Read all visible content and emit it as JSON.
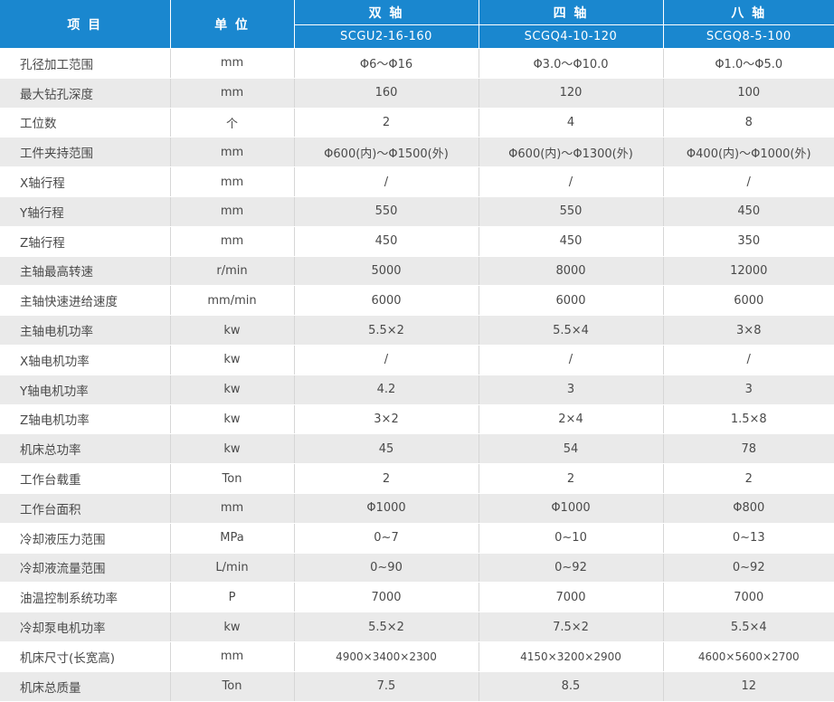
{
  "header": {
    "item_label": "项 目",
    "unit_label": "单 位",
    "models": [
      {
        "group": "双 轴",
        "code": "SCGU2-16-160"
      },
      {
        "group": "四 轴",
        "code": "SCGQ4-10-120"
      },
      {
        "group": "八 轴",
        "code": "SCGQ8-5-100"
      }
    ]
  },
  "rows": [
    {
      "item": "孔径加工范围",
      "unit": "mm",
      "v": [
        "Φ6～Φ16",
        "Φ3.0～Φ10.0",
        "Φ1.0～Φ5.0"
      ]
    },
    {
      "item": "最大钻孔深度",
      "unit": "mm",
      "v": [
        "160",
        "120",
        "100"
      ]
    },
    {
      "item": "工位数",
      "unit": "个",
      "v": [
        "2",
        "4",
        "8"
      ]
    },
    {
      "item": "工件夹持范围",
      "unit": "mm",
      "v": [
        "Φ600(内)～Φ1500(外)",
        "Φ600(内)～Φ1300(外)",
        "Φ400(内)～Φ1000(外)"
      ]
    },
    {
      "item": "X轴行程",
      "unit": "mm",
      "v": [
        "/",
        "/",
        "/"
      ]
    },
    {
      "item": "Y轴行程",
      "unit": "mm",
      "v": [
        "550",
        "550",
        "450"
      ]
    },
    {
      "item": "Z轴行程",
      "unit": "mm",
      "v": [
        "450",
        "450",
        "350"
      ]
    },
    {
      "item": "主轴最高转速",
      "unit": "r/min",
      "v": [
        "5000",
        "8000",
        "12000"
      ]
    },
    {
      "item": "主轴快速进给速度",
      "unit": "mm/min",
      "v": [
        "6000",
        "6000",
        "6000"
      ]
    },
    {
      "item": "主轴电机功率",
      "unit": "kw",
      "v": [
        "5.5×2",
        "5.5×4",
        "3×8"
      ]
    },
    {
      "item": "X轴电机功率",
      "unit": "kw",
      "v": [
        "/",
        "/",
        "/"
      ]
    },
    {
      "item": "Y轴电机功率",
      "unit": "kw",
      "v": [
        "4.2",
        "3",
        "3"
      ]
    },
    {
      "item": "Z轴电机功率",
      "unit": "kw",
      "v": [
        "3×2",
        "2×4",
        "1.5×8"
      ]
    },
    {
      "item": "机床总功率",
      "unit": "kw",
      "v": [
        "45",
        "54",
        "78"
      ]
    },
    {
      "item": "工作台载重",
      "unit": "Ton",
      "v": [
        "2",
        "2",
        "2"
      ]
    },
    {
      "item": "工作台面积",
      "unit": "mm",
      "v": [
        "Φ1000",
        "Φ1000",
        "Φ800"
      ]
    },
    {
      "item": "冷却液压力范围",
      "unit": "MPa",
      "v": [
        "0~7",
        "0~10",
        "0~13"
      ]
    },
    {
      "item": "冷却液流量范围",
      "unit": "L/min",
      "v": [
        "0~90",
        "0~92",
        "0~92"
      ]
    },
    {
      "item": "油温控制系统功率",
      "unit": "P",
      "v": [
        "7000",
        "7000",
        "7000"
      ]
    },
    {
      "item": "冷却泵电机功率",
      "unit": "kw",
      "v": [
        "5.5×2",
        "7.5×2",
        "5.5×4"
      ]
    },
    {
      "item": "机床尺寸(长宽高)",
      "unit": "mm",
      "v": [
        "4900×3400×2300",
        "4150×3200×2900",
        "4600×5600×2700"
      ]
    },
    {
      "item": "机床总质量",
      "unit": "Ton",
      "v": [
        "7.5",
        "8.5",
        "12"
      ]
    }
  ],
  "colors": {
    "header_bg": "#1a87cf",
    "row_alt_bg": "#eaeaea",
    "text": "#4a4a4a"
  }
}
